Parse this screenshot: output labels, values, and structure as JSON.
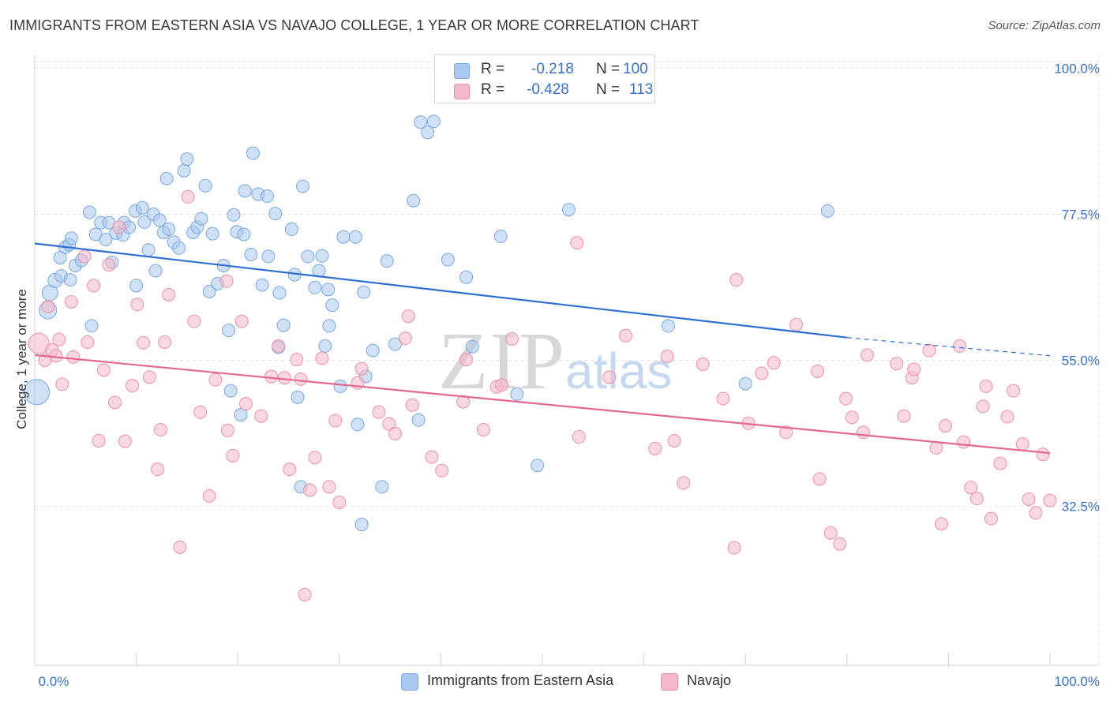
{
  "header": {
    "title": "IMMIGRANTS FROM EASTERN ASIA VS NAVAJO COLLEGE, 1 YEAR OR MORE CORRELATION CHART",
    "source": "Source: ZipAtlas.com"
  },
  "watermark": {
    "zip": "ZIP",
    "atlas": "atlas"
  },
  "legend": {
    "r_label": "R =",
    "n_label": "N =",
    "rows": [
      {
        "r": "-0.218",
        "n": "100",
        "color": "#a9c8ef"
      },
      {
        "r": "-0.428",
        "n": "113",
        "color": "#f5b8ca"
      }
    ]
  },
  "chart_data": {
    "type": "scatter",
    "title": "IMMIGRANTS FROM EASTERN ASIA VS NAVAJO COLLEGE, 1 YEAR OR MORE CORRELATION CHART",
    "xlabel": "",
    "ylabel": "College, 1 year or more",
    "xlim": [
      0,
      100
    ],
    "ylim": [
      8,
      102
    ],
    "x_tick_labels": [
      "0.0%",
      "100.0%"
    ],
    "y_ticks": [
      32.5,
      55.0,
      77.5,
      100.0
    ],
    "y_tick_labels": [
      "32.5%",
      "55.0%",
      "77.5%",
      "100.0%"
    ],
    "grid": true,
    "legend_position": "top-center",
    "series": [
      {
        "name": "Immigrants from Eastern Asia",
        "color": "#a9c8ef",
        "edge": "#7aa7df",
        "line_color": "#2f6fd1",
        "r": -0.218,
        "n": 100,
        "trend": {
          "x0": 0,
          "y0": 73.0,
          "x1": 80,
          "y1": 58.5,
          "dash_to_x": 100,
          "dash_to_y": 55.7
        },
        "points": [
          [
            0.2,
            50.1,
            16
          ],
          [
            1.3,
            62.7,
            11
          ],
          [
            1.5,
            65.4,
            10
          ],
          [
            2.0,
            67.3,
            9
          ],
          [
            2.6,
            68.0,
            8
          ],
          [
            2.5,
            70.8,
            8
          ],
          [
            3.0,
            72.4,
            8
          ],
          [
            3.4,
            72.8,
            8
          ],
          [
            3.6,
            73.8,
            8
          ],
          [
            3.5,
            67.4,
            8
          ],
          [
            4.0,
            69.6,
            8
          ],
          [
            4.6,
            70.4,
            8
          ],
          [
            5.4,
            77.8,
            8
          ],
          [
            5.6,
            60.3,
            8
          ],
          [
            6.0,
            74.4,
            8
          ],
          [
            6.5,
            76.2,
            8
          ],
          [
            7.3,
            76.2,
            8
          ],
          [
            7.0,
            73.6,
            8
          ],
          [
            7.6,
            70.1,
            8
          ],
          [
            8.0,
            74.6,
            8
          ],
          [
            8.7,
            74.3,
            8
          ],
          [
            8.8,
            76.2,
            8
          ],
          [
            9.3,
            75.5,
            8
          ],
          [
            9.9,
            78.0,
            8
          ],
          [
            10.0,
            66.5,
            8
          ],
          [
            10.6,
            78.5,
            8
          ],
          [
            10.8,
            76.3,
            8
          ],
          [
            11.2,
            72.0,
            8
          ],
          [
            11.7,
            77.5,
            8
          ],
          [
            11.9,
            68.8,
            8
          ],
          [
            12.3,
            76.6,
            8
          ],
          [
            12.7,
            74.7,
            8
          ],
          [
            13.0,
            83.0,
            8
          ],
          [
            13.2,
            75.2,
            8
          ],
          [
            13.7,
            73.2,
            8
          ],
          [
            14.2,
            72.3,
            8
          ],
          [
            14.7,
            84.2,
            8
          ],
          [
            15.0,
            86.0,
            8
          ],
          [
            15.6,
            74.7,
            8
          ],
          [
            16.0,
            75.5,
            8
          ],
          [
            16.4,
            76.8,
            8
          ],
          [
            16.8,
            81.9,
            8
          ],
          [
            17.2,
            65.6,
            8
          ],
          [
            17.5,
            74.5,
            8
          ],
          [
            18.0,
            66.8,
            8
          ],
          [
            18.6,
            69.6,
            8
          ],
          [
            19.1,
            59.6,
            8
          ],
          [
            19.3,
            50.3,
            8
          ],
          [
            19.6,
            77.4,
            8
          ],
          [
            19.9,
            74.8,
            8
          ],
          [
            20.3,
            46.6,
            8
          ],
          [
            20.6,
            74.4,
            8
          ],
          [
            20.7,
            81.1,
            8
          ],
          [
            21.3,
            71.3,
            8
          ],
          [
            21.5,
            86.9,
            8
          ],
          [
            22.0,
            80.6,
            8
          ],
          [
            22.9,
            80.3,
            8
          ],
          [
            23.0,
            71.0,
            8
          ],
          [
            22.4,
            66.6,
            8
          ],
          [
            23.7,
            77.6,
            8
          ],
          [
            24.0,
            57.0,
            8
          ],
          [
            24.1,
            65.4,
            8
          ],
          [
            24.5,
            60.4,
            8
          ],
          [
            25.3,
            75.2,
            8
          ],
          [
            25.6,
            68.2,
            8
          ],
          [
            25.9,
            49.3,
            8
          ],
          [
            26.2,
            35.5,
            8
          ],
          [
            26.4,
            81.8,
            8
          ],
          [
            26.9,
            71.0,
            8
          ],
          [
            27.6,
            66.2,
            8
          ],
          [
            28.0,
            68.8,
            8
          ],
          [
            28.3,
            71.1,
            8
          ],
          [
            28.6,
            57.2,
            8
          ],
          [
            28.9,
            65.9,
            8
          ],
          [
            29.3,
            63.5,
            8
          ],
          [
            29.0,
            60.3,
            8
          ],
          [
            30.1,
            51.0,
            8
          ],
          [
            30.4,
            74.0,
            8
          ],
          [
            31.6,
            74.0,
            8
          ],
          [
            31.8,
            45.1,
            8
          ],
          [
            32.2,
            29.7,
            8
          ],
          [
            32.4,
            65.5,
            8
          ],
          [
            32.6,
            52.5,
            8
          ],
          [
            33.3,
            56.5,
            8
          ],
          [
            34.2,
            35.5,
            8
          ],
          [
            34.7,
            70.3,
            8
          ],
          [
            35.5,
            57.5,
            8
          ],
          [
            37.3,
            79.6,
            8
          ],
          [
            37.8,
            45.8,
            8
          ],
          [
            38.0,
            91.7,
            8
          ],
          [
            38.7,
            90.1,
            8
          ],
          [
            39.3,
            91.8,
            8
          ],
          [
            40.7,
            70.5,
            8
          ],
          [
            42.5,
            67.8,
            8
          ],
          [
            43.1,
            57.1,
            8
          ],
          [
            45.9,
            74.1,
            8
          ],
          [
            47.5,
            49.8,
            8
          ],
          [
            49.5,
            38.8,
            8
          ],
          [
            52.6,
            78.2,
            8
          ],
          [
            62.4,
            60.3,
            8
          ],
          [
            78.1,
            78.0,
            8
          ],
          [
            70.0,
            51.4,
            8
          ]
        ]
      },
      {
        "name": "Navajo",
        "color": "#f5b8ca",
        "edge": "#ea8fab",
        "line_color": "#e36790",
        "r": -0.428,
        "n": 113,
        "trend": {
          "x0": 0,
          "y0": 55.8,
          "x1": 100,
          "y1": 40.7
        },
        "points": [
          [
            0.4,
            57.6,
            13
          ],
          [
            1.0,
            55.0,
            8
          ],
          [
            1.3,
            63.3,
            8
          ],
          [
            1.7,
            56.6,
            8
          ],
          [
            2.1,
            55.7,
            8
          ],
          [
            2.4,
            58.2,
            8
          ],
          [
            2.7,
            51.3,
            8
          ],
          [
            3.6,
            64.0,
            8
          ],
          [
            3.8,
            55.5,
            8
          ],
          [
            4.9,
            71.0,
            8
          ],
          [
            5.2,
            57.8,
            8
          ],
          [
            5.8,
            66.5,
            8
          ],
          [
            6.3,
            42.6,
            8
          ],
          [
            6.8,
            53.5,
            8
          ],
          [
            7.3,
            69.7,
            8
          ],
          [
            7.9,
            48.5,
            8
          ],
          [
            8.3,
            75.5,
            8
          ],
          [
            8.9,
            42.5,
            8
          ],
          [
            9.6,
            51.1,
            8
          ],
          [
            10.1,
            63.6,
            8
          ],
          [
            10.7,
            57.7,
            8
          ],
          [
            11.3,
            52.4,
            8
          ],
          [
            12.1,
            38.2,
            8
          ],
          [
            12.4,
            44.3,
            8
          ],
          [
            12.8,
            57.8,
            8
          ],
          [
            13.2,
            65.1,
            8
          ],
          [
            14.3,
            26.2,
            8
          ],
          [
            15.1,
            80.2,
            8
          ],
          [
            15.7,
            61.0,
            8
          ],
          [
            16.3,
            47.0,
            8
          ],
          [
            17.2,
            34.1,
            8
          ],
          [
            17.8,
            52.0,
            8
          ],
          [
            18.9,
            67.2,
            8
          ],
          [
            19.0,
            44.2,
            8
          ],
          [
            19.5,
            40.3,
            8
          ],
          [
            20.4,
            61.0,
            8
          ],
          [
            20.8,
            48.3,
            8
          ],
          [
            22.3,
            46.4,
            8
          ],
          [
            23.3,
            52.5,
            8
          ],
          [
            24.0,
            57.2,
            8
          ],
          [
            24.6,
            52.3,
            8
          ],
          [
            25.1,
            38.2,
            8
          ],
          [
            25.8,
            55.1,
            8
          ],
          [
            26.2,
            52.1,
            8
          ],
          [
            26.6,
            18.9,
            8
          ],
          [
            27.1,
            35.0,
            8
          ],
          [
            27.6,
            40.0,
            8
          ],
          [
            28.3,
            55.3,
            8
          ],
          [
            29.0,
            35.5,
            8
          ],
          [
            29.6,
            45.7,
            8
          ],
          [
            30.0,
            33.1,
            8
          ],
          [
            31.8,
            51.5,
            8
          ],
          [
            32.2,
            53.7,
            8
          ],
          [
            33.9,
            47.0,
            8
          ],
          [
            34.9,
            45.2,
            8
          ],
          [
            35.5,
            43.7,
            8
          ],
          [
            36.5,
            58.4,
            8
          ],
          [
            36.8,
            61.8,
            8
          ],
          [
            37.2,
            48.1,
            8
          ],
          [
            39.1,
            40.1,
            8
          ],
          [
            40.1,
            38.0,
            8
          ],
          [
            42.5,
            55.1,
            8
          ],
          [
            42.2,
            48.6,
            8
          ],
          [
            44.2,
            44.3,
            8
          ],
          [
            45.5,
            50.9,
            8
          ],
          [
            46.0,
            51.2,
            8
          ],
          [
            47.0,
            58.3,
            8
          ],
          [
            53.4,
            73.1,
            8
          ],
          [
            53.6,
            43.2,
            8
          ],
          [
            56.6,
            52.4,
            8
          ],
          [
            58.2,
            58.8,
            8
          ],
          [
            61.1,
            41.4,
            8
          ],
          [
            62.3,
            55.6,
            8
          ],
          [
            63.0,
            42.6,
            8
          ],
          [
            63.9,
            36.1,
            8
          ],
          [
            65.8,
            54.4,
            8
          ],
          [
            67.8,
            49.1,
            8
          ],
          [
            68.9,
            26.1,
            8
          ],
          [
            69.1,
            67.4,
            8
          ],
          [
            70.3,
            45.3,
            8
          ],
          [
            71.6,
            53.0,
            8
          ],
          [
            72.8,
            54.6,
            8
          ],
          [
            74.0,
            43.9,
            8
          ],
          [
            75.0,
            60.5,
            8
          ],
          [
            77.1,
            53.3,
            8
          ],
          [
            77.3,
            36.7,
            8
          ],
          [
            78.4,
            28.4,
            8
          ],
          [
            79.3,
            26.7,
            8
          ],
          [
            79.9,
            49.1,
            8
          ],
          [
            80.5,
            46.2,
            8
          ],
          [
            81.6,
            43.9,
            8
          ],
          [
            82.0,
            55.8,
            8
          ],
          [
            84.9,
            54.5,
            8
          ],
          [
            85.6,
            46.4,
            8
          ],
          [
            86.4,
            52.3,
            8
          ],
          [
            86.6,
            53.6,
            8
          ],
          [
            88.1,
            56.5,
            8
          ],
          [
            88.8,
            41.5,
            8
          ],
          [
            89.3,
            29.8,
            8
          ],
          [
            89.7,
            44.9,
            8
          ],
          [
            91.1,
            57.2,
            8
          ],
          [
            91.5,
            42.4,
            8
          ],
          [
            92.2,
            35.4,
            8
          ],
          [
            92.8,
            33.7,
            8
          ],
          [
            93.4,
            47.9,
            8
          ],
          [
            93.7,
            51.0,
            8
          ],
          [
            94.2,
            30.6,
            8
          ],
          [
            95.1,
            39.1,
            8
          ],
          [
            95.8,
            46.3,
            8
          ],
          [
            96.4,
            50.3,
            8
          ],
          [
            97.3,
            42.1,
            8
          ],
          [
            97.9,
            33.6,
            8
          ],
          [
            98.6,
            31.5,
            8
          ],
          [
            99.3,
            40.5,
            8
          ],
          [
            100.0,
            33.4,
            8
          ]
        ]
      }
    ]
  }
}
